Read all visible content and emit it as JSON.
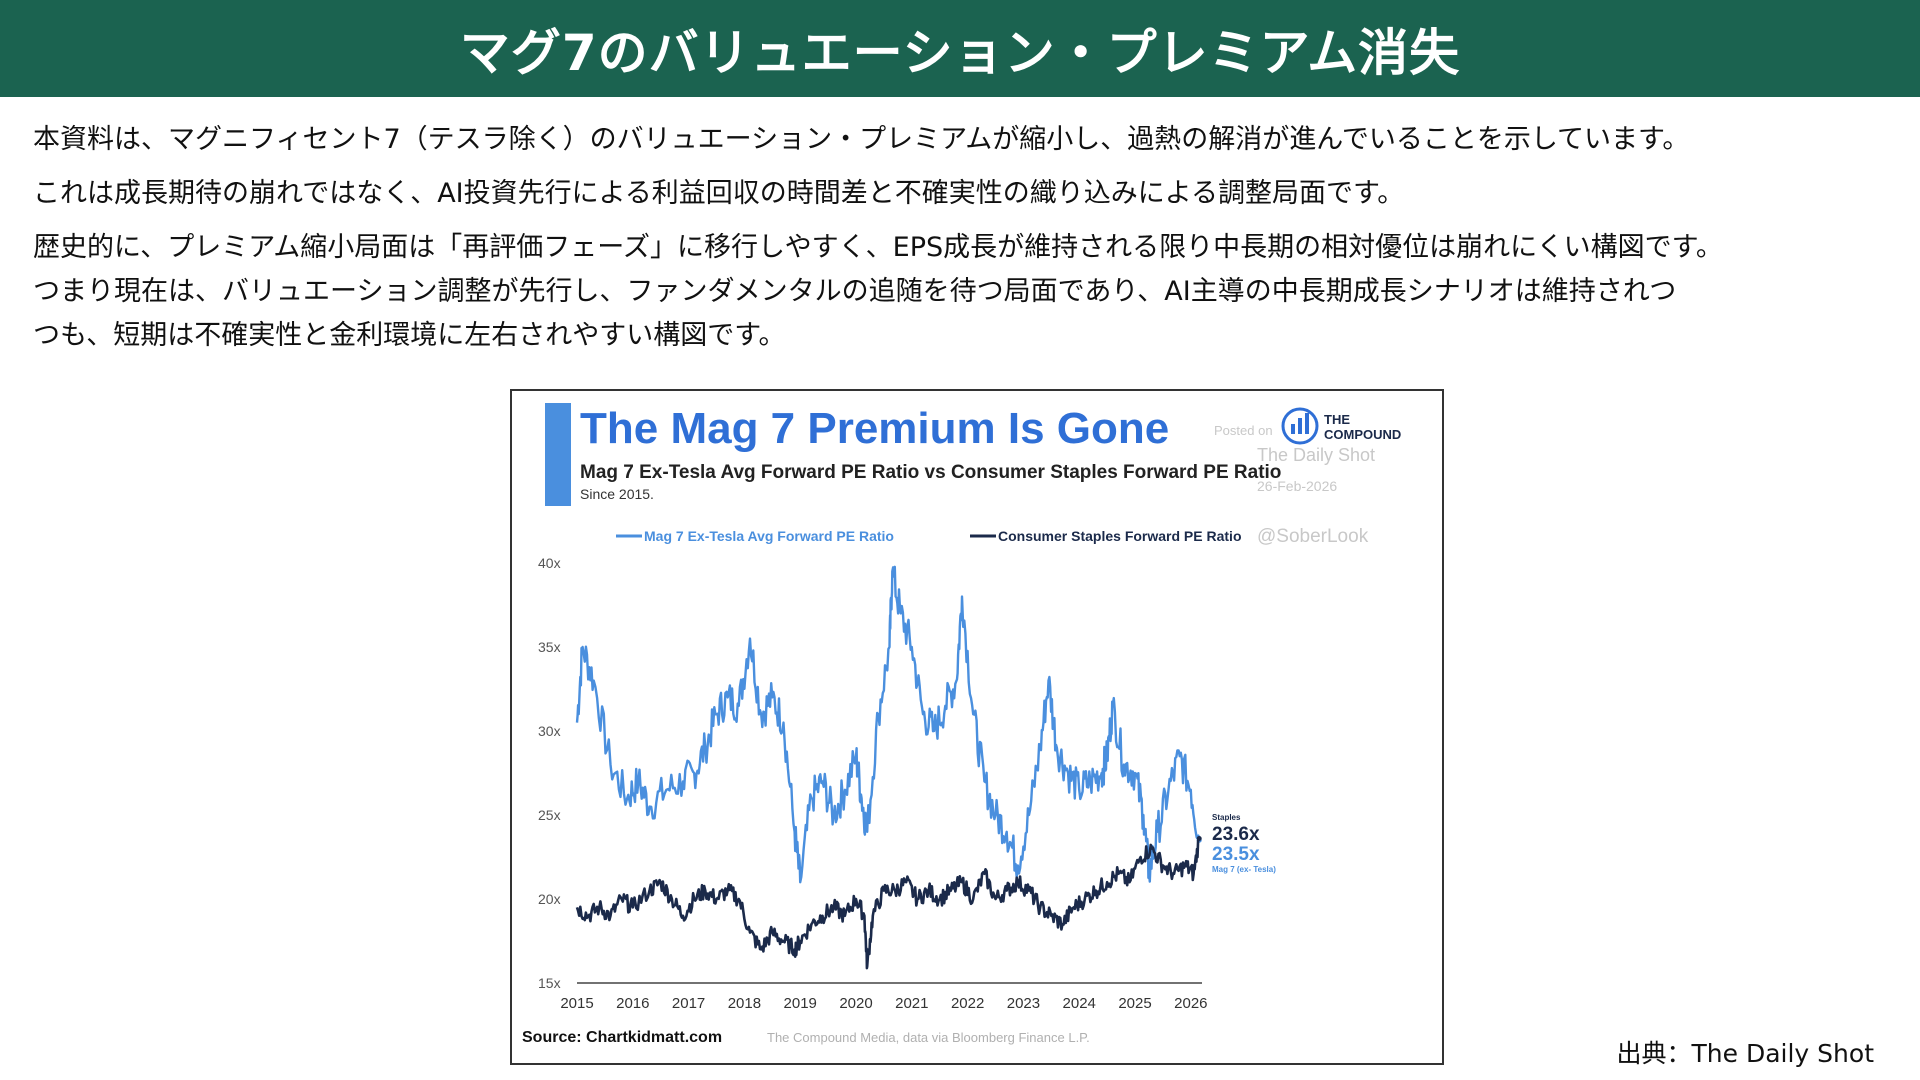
{
  "page": {
    "title": "マグ7のバリュエーション・プレミアム消失",
    "paragraphs": [
      "本資料は、マグニフィセント7（テスラ除く）のバリュエーション・プレミアムが縮小し、過熱の解消が進んでいることを示しています。",
      "これは成長期待の崩れではなく、AI投資先行による利益回収の時間差と不確実性の織り込みによる調整局面です。",
      "歴史的に、プレミアム縮小局面は「再評価フェーズ」に移行しやすく、EPS成長が維持される限り中長期の相対優位は崩れにくい構図です。",
      "つまり現在は、バリュエーション調整が先行し、ファンダメンタルの追随を待つ局面であり、AI主導の中長期成長シナリオは維持されつ",
      "つも、短期は不確実性と金利環境に左右されやすい構図です。"
    ],
    "source_note": "出典：The Daily Shot"
  },
  "chart_data": {
    "type": "line",
    "title": "The Mag 7 Premium Is Gone",
    "subtitle": "Mag 7 Ex-Tesla Avg Forward PE Ratio vs Consumer Staples Forward PE Ratio",
    "subtitle2": "Since 2015.",
    "brand": {
      "line1": "THE",
      "line2": "COMPOUND"
    },
    "watermark": {
      "line1": "Posted on",
      "line2": "The Daily Shot",
      "line3": "26-Feb-2026",
      "line4": "@SoberLook"
    },
    "source_label": "Source: Chartkidmatt.com",
    "source_detail": "The Compound Media, data via Bloomberg Finance L.P.",
    "xlabel": "",
    "ylabel": "",
    "x_ticks": [
      "2015",
      "2016",
      "2017",
      "2018",
      "2019",
      "2020",
      "2021",
      "2022",
      "2023",
      "2024",
      "2025",
      "2026"
    ],
    "y_ticks": [
      "15x",
      "20x",
      "25x",
      "30x",
      "35x",
      "40x"
    ],
    "xlim": [
      2015.0,
      2026.2
    ],
    "ylim": [
      15,
      40
    ],
    "legend_position": "top",
    "grid": false,
    "series": [
      {
        "name": "Mag 7 Ex-Tesla Avg Forward PE Ratio",
        "color": "#4a8fde",
        "end_label": "23.5x",
        "end_sublabel": "Mag 7 (ex- Tesla)",
        "points": [
          [
            2015.0,
            30.5
          ],
          [
            2015.1,
            35.0
          ],
          [
            2015.3,
            33.0
          ],
          [
            2015.6,
            28.0
          ],
          [
            2015.9,
            26.0
          ],
          [
            2016.1,
            27.0
          ],
          [
            2016.3,
            25.5
          ],
          [
            2016.6,
            26.5
          ],
          [
            2016.9,
            27.0
          ],
          [
            2017.1,
            27.5
          ],
          [
            2017.3,
            29.0
          ],
          [
            2017.5,
            31.0
          ],
          [
            2017.7,
            32.0
          ],
          [
            2017.9,
            31.5
          ],
          [
            2018.1,
            35.5
          ],
          [
            2018.3,
            31.0
          ],
          [
            2018.5,
            32.0
          ],
          [
            2018.7,
            30.5
          ],
          [
            2018.9,
            24.0
          ],
          [
            2019.0,
            21.0
          ],
          [
            2019.2,
            26.0
          ],
          [
            2019.4,
            27.0
          ],
          [
            2019.6,
            25.0
          ],
          [
            2019.8,
            26.5
          ],
          [
            2020.0,
            28.5
          ],
          [
            2020.1,
            26.0
          ],
          [
            2020.2,
            24.0
          ],
          [
            2020.4,
            31.0
          ],
          [
            2020.6,
            35.0
          ],
          [
            2020.65,
            39.5
          ],
          [
            2020.8,
            37.0
          ],
          [
            2021.0,
            35.0
          ],
          [
            2021.2,
            31.0
          ],
          [
            2021.4,
            30.0
          ],
          [
            2021.6,
            31.5
          ],
          [
            2021.8,
            33.0
          ],
          [
            2021.9,
            38.0
          ],
          [
            2022.1,
            31.0
          ],
          [
            2022.3,
            27.0
          ],
          [
            2022.5,
            25.0
          ],
          [
            2022.7,
            24.0
          ],
          [
            2022.9,
            22.0
          ],
          [
            2023.1,
            25.0
          ],
          [
            2023.3,
            29.0
          ],
          [
            2023.45,
            33.0
          ],
          [
            2023.6,
            29.0
          ],
          [
            2023.8,
            27.5
          ],
          [
            2024.0,
            26.5
          ],
          [
            2024.2,
            27.0
          ],
          [
            2024.4,
            27.5
          ],
          [
            2024.5,
            28.5
          ],
          [
            2024.6,
            31.5
          ],
          [
            2024.8,
            28.0
          ],
          [
            2025.0,
            27.5
          ],
          [
            2025.15,
            25.0
          ],
          [
            2025.25,
            21.5
          ],
          [
            2025.4,
            24.0
          ],
          [
            2025.6,
            26.5
          ],
          [
            2025.8,
            28.5
          ],
          [
            2026.0,
            26.5
          ],
          [
            2026.15,
            23.5
          ]
        ]
      },
      {
        "name": "Consumer Staples Forward PE Ratio",
        "color": "#1b2a4a",
        "end_label": "23.6x",
        "end_sublabel": "Staples",
        "points": [
          [
            2015.0,
            19.5
          ],
          [
            2015.2,
            19.0
          ],
          [
            2015.4,
            19.5
          ],
          [
            2015.6,
            19.0
          ],
          [
            2015.8,
            20.0
          ],
          [
            2016.0,
            19.5
          ],
          [
            2016.3,
            20.5
          ],
          [
            2016.5,
            21.0
          ],
          [
            2016.7,
            20.0
          ],
          [
            2016.9,
            19.0
          ],
          [
            2017.1,
            20.0
          ],
          [
            2017.3,
            20.5
          ],
          [
            2017.5,
            20.0
          ],
          [
            2017.7,
            20.5
          ],
          [
            2017.9,
            20.0
          ],
          [
            2018.1,
            18.0
          ],
          [
            2018.3,
            17.0
          ],
          [
            2018.5,
            18.0
          ],
          [
            2018.7,
            17.5
          ],
          [
            2018.9,
            17.0
          ],
          [
            2019.0,
            17.5
          ],
          [
            2019.2,
            18.5
          ],
          [
            2019.4,
            19.0
          ],
          [
            2019.6,
            19.5
          ],
          [
            2019.8,
            19.0
          ],
          [
            2020.0,
            20.0
          ],
          [
            2020.15,
            19.0
          ],
          [
            2020.2,
            16.0
          ],
          [
            2020.3,
            19.0
          ],
          [
            2020.5,
            20.5
          ],
          [
            2020.7,
            20.5
          ],
          [
            2020.9,
            21.0
          ],
          [
            2021.1,
            20.0
          ],
          [
            2021.3,
            20.5
          ],
          [
            2021.5,
            20.0
          ],
          [
            2021.7,
            20.5
          ],
          [
            2021.9,
            21.0
          ],
          [
            2022.1,
            20.0
          ],
          [
            2022.3,
            21.5
          ],
          [
            2022.5,
            20.0
          ],
          [
            2022.7,
            20.5
          ],
          [
            2022.9,
            21.0
          ],
          [
            2023.1,
            20.5
          ],
          [
            2023.3,
            19.5
          ],
          [
            2023.5,
            19.0
          ],
          [
            2023.7,
            18.5
          ],
          [
            2023.9,
            19.5
          ],
          [
            2024.1,
            20.0
          ],
          [
            2024.3,
            20.5
          ],
          [
            2024.5,
            21.0
          ],
          [
            2024.7,
            21.5
          ],
          [
            2024.9,
            21.0
          ],
          [
            2025.1,
            22.5
          ],
          [
            2025.3,
            23.0
          ],
          [
            2025.5,
            22.0
          ],
          [
            2025.7,
            21.5
          ],
          [
            2025.9,
            22.0
          ],
          [
            2026.05,
            21.5
          ],
          [
            2026.15,
            23.6
          ]
        ]
      }
    ]
  },
  "colors": {
    "header_bg": "#1b6350",
    "title_blue": "#2f6fd6",
    "accent_bar": "#4a8fde"
  }
}
